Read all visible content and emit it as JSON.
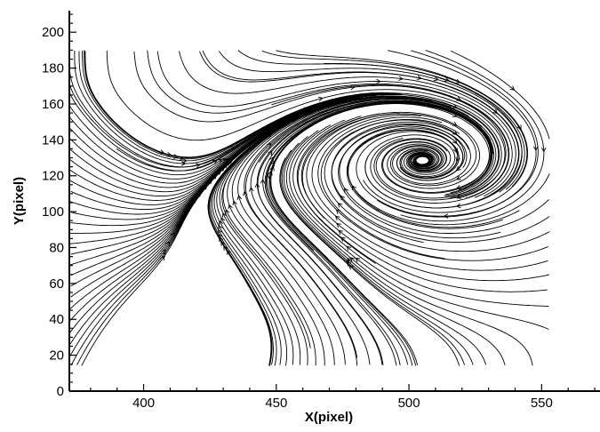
{
  "chart_data": {
    "type": "streamline",
    "title": "",
    "xlabel": "X(pixel)",
    "ylabel": "Y(pixel)",
    "xlim": [
      372,
      572
    ],
    "ylim": [
      0,
      212
    ],
    "xticks": [
      "400",
      "450",
      "500",
      "550"
    ],
    "yticks": [
      "0",
      "20",
      "40",
      "60",
      "80",
      "100",
      "120",
      "140",
      "160",
      "180",
      "200"
    ],
    "grid": false,
    "legend": "none",
    "domain": {
      "x": [
        372,
        553
      ],
      "y": [
        14,
        190
      ]
    },
    "features": {
      "vortex_center": [
        512,
        135
      ],
      "saddle_point": [
        462,
        80
      ],
      "separatrix_y": 83,
      "lower_node_region": [
        [
          445,
          14
        ],
        [
          452,
          14
        ]
      ]
    },
    "line_color": "#000000"
  }
}
